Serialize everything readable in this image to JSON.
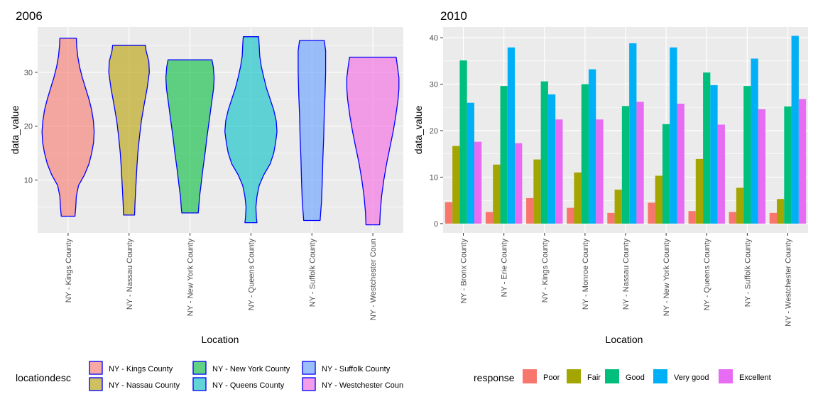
{
  "chart_data": [
    {
      "type": "violin",
      "title": "2006",
      "xlabel": "Location",
      "ylabel": "data_value",
      "ylim": [
        0.2,
        38.4
      ],
      "yticks": [
        10,
        20,
        30
      ],
      "grid": true,
      "legend_position": "bottom",
      "legend_title": "locationdesc",
      "categories": [
        "NY - Kings County",
        "NY - Nassau County",
        "NY - New York County",
        "NY - Queens County",
        "NY - Suffolk County",
        "NY - Westchester Coun"
      ],
      "legend_labels": [
        "NY - Kings County",
        "NY - Nassau County",
        "NY - New York County",
        "NY - Queens County",
        "NY - Suffolk County",
        "NY - Westchester Coun"
      ],
      "colors": [
        "#F8766D",
        "#B79F00",
        "#00BA38",
        "#00BFC4",
        "#619CFF",
        "#F564E3"
      ],
      "outline_color": "#0000FF",
      "violins": [
        {
          "min": 3.3,
          "max": 36.3,
          "profile": [
            [
              3.3,
              0.25
            ],
            [
              5,
              0.28
            ],
            [
              7,
              0.3
            ],
            [
              9,
              0.38
            ],
            [
              11,
              0.6
            ],
            [
              13,
              0.76
            ],
            [
              15,
              0.86
            ],
            [
              17,
              0.93
            ],
            [
              19,
              0.95
            ],
            [
              21,
              0.92
            ],
            [
              23,
              0.86
            ],
            [
              25,
              0.76
            ],
            [
              27,
              0.64
            ],
            [
              29,
              0.52
            ],
            [
              31,
              0.42
            ],
            [
              33,
              0.35
            ],
            [
              35,
              0.31
            ],
            [
              36.3,
              0.3
            ]
          ]
        },
        {
          "min": 3.5,
          "max": 35.0,
          "profile": [
            [
              3.5,
              0.2
            ],
            [
              6,
              0.22
            ],
            [
              9,
              0.25
            ],
            [
              12,
              0.28
            ],
            [
              15,
              0.32
            ],
            [
              18,
              0.38
            ],
            [
              21,
              0.45
            ],
            [
              24,
              0.55
            ],
            [
              27,
              0.66
            ],
            [
              30,
              0.74
            ],
            [
              32,
              0.72
            ],
            [
              34,
              0.62
            ],
            [
              35,
              0.6
            ]
          ]
        },
        {
          "min": 3.9,
          "max": 32.3,
          "profile": [
            [
              3.9,
              0.3
            ],
            [
              5,
              0.32
            ],
            [
              7,
              0.35
            ],
            [
              9,
              0.4
            ],
            [
              12,
              0.47
            ],
            [
              15,
              0.55
            ],
            [
              18,
              0.62
            ],
            [
              21,
              0.7
            ],
            [
              24,
              0.78
            ],
            [
              27,
              0.86
            ],
            [
              29,
              0.88
            ],
            [
              31,
              0.85
            ],
            [
              32.3,
              0.8
            ]
          ]
        },
        {
          "min": 2.1,
          "max": 36.6,
          "profile": [
            [
              2.1,
              0.22
            ],
            [
              3,
              0.2
            ],
            [
              5,
              0.18
            ],
            [
              7,
              0.22
            ],
            [
              9,
              0.3
            ],
            [
              11,
              0.47
            ],
            [
              13,
              0.7
            ],
            [
              15,
              0.83
            ],
            [
              17,
              0.9
            ],
            [
              19,
              0.95
            ],
            [
              21,
              0.92
            ],
            [
              23,
              0.83
            ],
            [
              25,
              0.7
            ],
            [
              27,
              0.57
            ],
            [
              29,
              0.47
            ],
            [
              31,
              0.38
            ],
            [
              33,
              0.32
            ],
            [
              35,
              0.3
            ],
            [
              36.6,
              0.28
            ]
          ]
        },
        {
          "min": 2.5,
          "max": 35.9,
          "profile": [
            [
              2.5,
              0.3
            ],
            [
              6,
              0.35
            ],
            [
              10,
              0.38
            ],
            [
              14,
              0.4
            ],
            [
              18,
              0.43
            ],
            [
              22,
              0.45
            ],
            [
              26,
              0.48
            ],
            [
              30,
              0.5
            ],
            [
              34,
              0.5
            ],
            [
              35.9,
              0.45
            ]
          ]
        },
        {
          "min": 1.7,
          "max": 32.8,
          "profile": [
            [
              1.7,
              0.25
            ],
            [
              4,
              0.27
            ],
            [
              7,
              0.32
            ],
            [
              10,
              0.4
            ],
            [
              13,
              0.5
            ],
            [
              16,
              0.62
            ],
            [
              19,
              0.74
            ],
            [
              22,
              0.84
            ],
            [
              25,
              0.92
            ],
            [
              27,
              0.95
            ],
            [
              29,
              0.95
            ],
            [
              31,
              0.9
            ],
            [
              32.8,
              0.85
            ]
          ]
        }
      ]
    },
    {
      "type": "bar",
      "title": "2010",
      "xlabel": "Location",
      "ylabel": "data_value",
      "ylim": [
        -2.0,
        42.3
      ],
      "yticks": [
        0,
        10,
        20,
        30,
        40
      ],
      "grid": true,
      "legend_position": "bottom",
      "legend_title": "response",
      "categories": [
        "NY - Bronx County",
        "NY - Erie County",
        "NY - Kings County",
        "NY - Monroe County",
        "NY - Nassau County",
        "NY - New York County",
        "NY - Queens County",
        "NY - Suffolk County",
        "NY - Westchester County"
      ],
      "series": [
        {
          "name": "Poor",
          "color": "#F8766D",
          "values": [
            4.6,
            2.5,
            5.5,
            3.4,
            2.3,
            4.5,
            2.7,
            2.5,
            2.3
          ]
        },
        {
          "name": "Fair",
          "color": "#A3A500",
          "values": [
            16.7,
            12.7,
            13.8,
            11.0,
            7.3,
            10.3,
            13.9,
            7.7,
            5.3
          ]
        },
        {
          "name": "Good",
          "color": "#00BF7D",
          "values": [
            35.1,
            29.6,
            30.6,
            30.0,
            25.3,
            21.4,
            32.5,
            29.6,
            25.2
          ]
        },
        {
          "name": "Very good",
          "color": "#00B0F6",
          "values": [
            26.0,
            37.9,
            27.8,
            33.2,
            38.8,
            37.9,
            29.8,
            35.5,
            40.4
          ]
        },
        {
          "name": "Excellent",
          "color": "#E76BF3",
          "values": [
            17.6,
            17.3,
            22.4,
            22.4,
            26.2,
            25.8,
            21.3,
            24.6,
            26.8
          ]
        }
      ]
    }
  ]
}
